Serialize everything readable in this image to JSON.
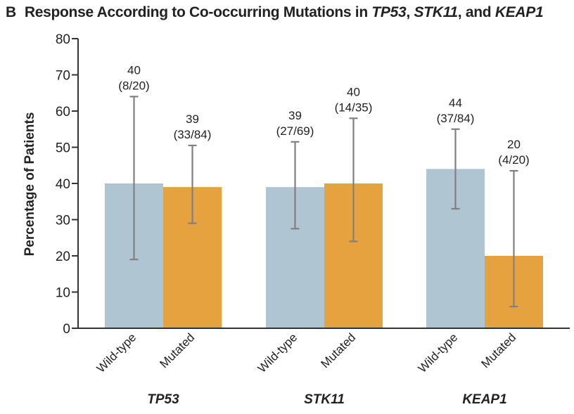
{
  "chart_data": {
    "type": "bar",
    "panel": "B",
    "title_parts": [
      {
        "text": "Response According to Co-occurring Mutations in ",
        "italic": false
      },
      {
        "text": "TP53",
        "italic": true
      },
      {
        "text": ", ",
        "italic": false
      },
      {
        "text": "STK11",
        "italic": true
      },
      {
        "text": ", and ",
        "italic": false
      },
      {
        "text": "KEAP1",
        "italic": true
      }
    ],
    "ylabel": "Percentage of Patients",
    "xlabel": "",
    "ylim": [
      0,
      80
    ],
    "yticks": [
      0,
      10,
      20,
      30,
      40,
      50,
      60,
      70,
      80
    ],
    "grid": false,
    "legend": "none",
    "colors": {
      "Wild-type": "#b0c5d2",
      "Mutated": "#e5a23f",
      "errorbar": "#808080",
      "axis": "#333333"
    },
    "groups": [
      {
        "name": "TP53",
        "bars": [
          {
            "category": "Wild-type",
            "value": 40,
            "label": "40",
            "fraction": "(8/20)",
            "ci": [
              19,
              64
            ]
          },
          {
            "category": "Mutated",
            "value": 39,
            "label": "39",
            "fraction": "(33/84)",
            "ci": [
              29,
              50.5
            ]
          }
        ]
      },
      {
        "name": "STK11",
        "bars": [
          {
            "category": "Wild-type",
            "value": 39,
            "label": "39",
            "fraction": "(27/69)",
            "ci": [
              27.5,
              51.5
            ]
          },
          {
            "category": "Mutated",
            "value": 40,
            "label": "40",
            "fraction": "(14/35)",
            "ci": [
              24,
              58
            ]
          }
        ]
      },
      {
        "name": "KEAP1",
        "bars": [
          {
            "category": "Wild-type",
            "value": 44,
            "label": "44",
            "fraction": "(37/84)",
            "ci": [
              33,
              55
            ]
          },
          {
            "category": "Mutated",
            "value": 20,
            "label": "20",
            "fraction": "(4/20)",
            "ci": [
              6,
              43.5
            ]
          }
        ]
      }
    ]
  }
}
